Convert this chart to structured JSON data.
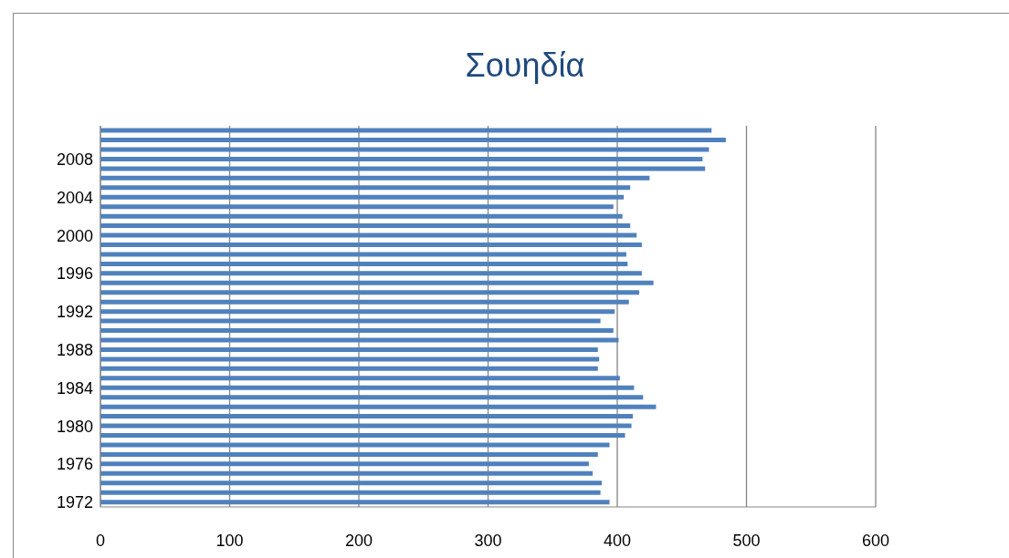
{
  "chart_data": {
    "type": "bar",
    "title": "Σουηδία",
    "orientation": "horizontal",
    "categories": [
      null,
      null,
      null,
      "2008",
      null,
      null,
      null,
      "2004",
      null,
      null,
      null,
      "2000",
      null,
      null,
      null,
      "1996",
      null,
      null,
      null,
      "1992",
      null,
      null,
      null,
      "1988",
      null,
      null,
      null,
      "1984",
      null,
      null,
      null,
      "1980",
      null,
      null,
      null,
      "1976",
      null,
      null,
      null,
      "1972"
    ],
    "values": [
      473,
      484,
      471,
      466,
      468,
      425,
      410,
      405,
      397,
      404,
      410,
      415,
      419,
      407,
      408,
      419,
      428,
      417,
      409,
      398,
      387,
      397,
      401,
      385,
      386,
      385,
      402,
      413,
      420,
      430,
      412,
      411,
      406,
      394,
      385,
      378,
      381,
      388,
      387,
      394
    ],
    "color": "#4f81bd",
    "xlim": [
      0,
      600
    ],
    "xticks": [
      0,
      100,
      200,
      300,
      400,
      500,
      600
    ],
    "grid": "x"
  }
}
